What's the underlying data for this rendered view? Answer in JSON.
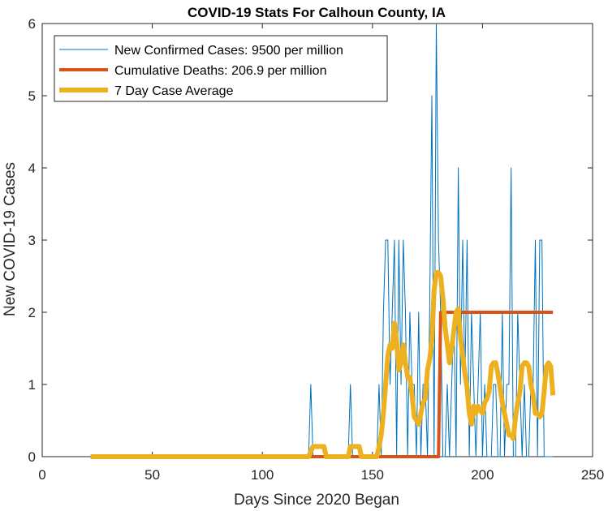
{
  "chart_data": {
    "type": "line",
    "title": "COVID-19 Stats For Calhoun County, IA",
    "xlabel": "Days Since 2020 Began",
    "ylabel": "New COVID-19 Cases",
    "xlim": [
      0,
      250
    ],
    "ylim": [
      0,
      6
    ],
    "xticks": [
      0,
      50,
      100,
      150,
      200,
      250
    ],
    "yticks": [
      0,
      1,
      2,
      3,
      4,
      5,
      6
    ],
    "grid": false,
    "legend_position": "top-left",
    "series": [
      {
        "name": "New Confirmed Cases: 9500 per million",
        "color": "#0072BD",
        "width": 1,
        "x": [
          22,
          120,
          121,
          122,
          123,
          138,
          139,
          140,
          141,
          152,
          153,
          154,
          155,
          156,
          157,
          158,
          159,
          160,
          161,
          162,
          163,
          164,
          165,
          166,
          167,
          168,
          169,
          170,
          171,
          172,
          173,
          174,
          175,
          176,
          177,
          178,
          179,
          180,
          181,
          182,
          183,
          184,
          185,
          186,
          187,
          188,
          189,
          190,
          191,
          192,
          193,
          194,
          195,
          196,
          197,
          198,
          199,
          200,
          201,
          202,
          203,
          204,
          205,
          206,
          207,
          208,
          209,
          210,
          211,
          212,
          213,
          214,
          215,
          216,
          217,
          218,
          219,
          220,
          221,
          222,
          223,
          224,
          225,
          226,
          227,
          228,
          229,
          230,
          231,
          232
        ],
        "values": [
          0,
          0,
          0,
          1,
          0,
          0,
          0,
          1,
          0,
          0,
          1,
          0,
          2,
          3,
          3,
          1,
          2,
          3,
          0,
          3,
          1,
          3,
          2,
          0,
          2,
          1,
          1,
          0,
          2,
          0,
          1,
          1,
          0,
          2,
          5,
          0,
          6,
          3,
          2,
          0,
          0,
          1,
          0,
          1,
          2,
          0,
          4,
          1,
          3,
          1,
          3,
          0,
          2,
          1,
          0,
          1,
          2,
          0,
          1,
          0,
          0,
          0,
          1,
          1,
          0,
          0,
          2,
          0,
          1,
          1,
          4,
          0,
          0,
          2,
          1,
          0,
          1,
          0,
          0,
          1,
          1,
          3,
          0,
          3,
          3,
          0,
          0,
          0,
          0,
          0
        ]
      },
      {
        "name": "Cumulative Deaths: 206.9 per million",
        "color": "#D95319",
        "width": 4,
        "x": [
          22,
          180,
          181,
          232
        ],
        "values": [
          0,
          0,
          2,
          2
        ]
      },
      {
        "name": "7 Day Case Average",
        "color": "#EDB120",
        "width": 6,
        "x": [
          22,
          121,
          123,
          124,
          128,
          129,
          139,
          140,
          142,
          144,
          145,
          149,
          152,
          153,
          154,
          155,
          156,
          157,
          158,
          159,
          160,
          161,
          162,
          163,
          164,
          165,
          166,
          167,
          168,
          169,
          170,
          171,
          172,
          173,
          174,
          175,
          176,
          177,
          178,
          179,
          180,
          181,
          182,
          183,
          184,
          185,
          186,
          187,
          188,
          189,
          190,
          191,
          192,
          193,
          194,
          195,
          196,
          197,
          198,
          199,
          200,
          201,
          202,
          203,
          204,
          205,
          206,
          207,
          208,
          209,
          210,
          211,
          212,
          213,
          214,
          215,
          216,
          217,
          218,
          219,
          220,
          221,
          222,
          223,
          224,
          225,
          226,
          227,
          228,
          229,
          230,
          231,
          232
        ],
        "values": [
          0,
          0,
          0.14,
          0.14,
          0.14,
          0,
          0,
          0.14,
          0.14,
          0.14,
          0,
          0,
          0,
          0.14,
          0.3,
          0.6,
          1.0,
          1.4,
          1.55,
          1.5,
          1.85,
          1.6,
          1.2,
          1.3,
          1.55,
          1.3,
          1.1,
          1.1,
          0.85,
          0.55,
          0.5,
          0.45,
          0.6,
          0.75,
          0.8,
          1.2,
          1.35,
          1.6,
          2.3,
          2.55,
          2.55,
          2.5,
          2.2,
          1.8,
          1.55,
          1.3,
          1.5,
          1.75,
          2.0,
          2.05,
          1.65,
          1.4,
          1.15,
          0.95,
          0.6,
          0.45,
          0.7,
          0.6,
          0.7,
          0.65,
          0.6,
          0.75,
          0.8,
          0.9,
          1.25,
          1.3,
          1.3,
          1.15,
          0.95,
          0.75,
          0.6,
          0.45,
          0.3,
          0.3,
          0.25,
          0.55,
          0.75,
          0.9,
          1.25,
          1.3,
          1.3,
          1.25,
          1.0,
          0.85,
          0.6,
          0.6,
          0.55,
          0.6,
          0.9,
          1.25,
          1.3,
          1.25,
          0.85
        ]
      }
    ]
  }
}
